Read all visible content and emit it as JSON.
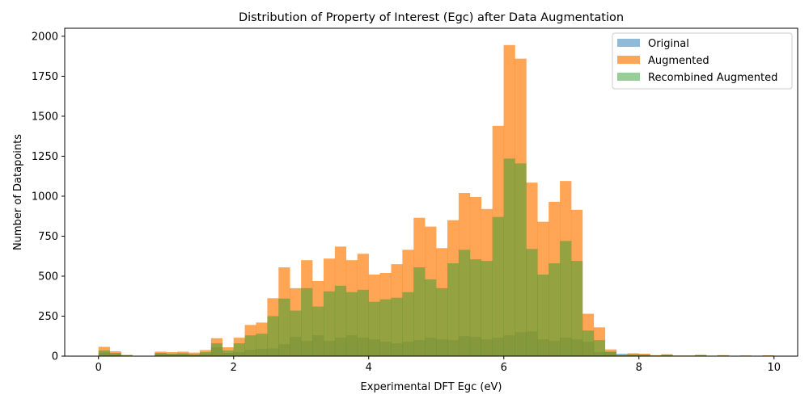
{
  "chart_data": {
    "type": "bar",
    "title": "Distribution of Property of Interest (Egc) after Data Augmentation",
    "xlabel": "Experimental DFT Egc (eV)",
    "ylabel": "Number of Datapoints",
    "xlim": [
      -0.5,
      10.35
    ],
    "ylim": [
      0,
      2050
    ],
    "xticks": [
      0,
      2,
      4,
      6,
      8,
      10
    ],
    "yticks": [
      0,
      250,
      500,
      750,
      1000,
      1250,
      1500,
      1750,
      2000
    ],
    "grid": false,
    "legend_position": "top-right",
    "bin_edges_start": 0,
    "bin_width": 0.1666,
    "series": [
      {
        "name": "Original",
        "color": "#1f77b4",
        "alpha": 0.5,
        "values": [
          22,
          12,
          3,
          0,
          2,
          15,
          12,
          12,
          8,
          14,
          55,
          20,
          25,
          40,
          45,
          48,
          75,
          120,
          95,
          130,
          95,
          115,
          130,
          115,
          105,
          90,
          80,
          90,
          100,
          115,
          105,
          100,
          125,
          120,
          105,
          115,
          130,
          150,
          155,
          105,
          95,
          115,
          105,
          90,
          25,
          30,
          15,
          5,
          3,
          3,
          2,
          2,
          2,
          2,
          2,
          2,
          2,
          2,
          2,
          2
        ]
      },
      {
        "name": "Augmented",
        "color": "#ff7f0e",
        "alpha": 0.7,
        "values": [
          58,
          30,
          8,
          0,
          2,
          28,
          25,
          28,
          22,
          38,
          112,
          55,
          115,
          195,
          210,
          362,
          555,
          425,
          600,
          470,
          610,
          685,
          600,
          640,
          510,
          520,
          575,
          665,
          865,
          810,
          675,
          850,
          1020,
          995,
          920,
          1440,
          1945,
          1860,
          1085,
          840,
          965,
          1095,
          915,
          265,
          180,
          42,
          8,
          18,
          15,
          6,
          12,
          4,
          4,
          8,
          3,
          6,
          2,
          4,
          2,
          5
        ]
      },
      {
        "name": "Recombined Augmented",
        "color": "#2ca02c",
        "alpha": 0.5,
        "values": [
          35,
          20,
          5,
          0,
          0,
          20,
          15,
          18,
          12,
          25,
          80,
          35,
          80,
          130,
          140,
          250,
          360,
          285,
          425,
          310,
          405,
          440,
          400,
          415,
          340,
          355,
          365,
          400,
          555,
          480,
          425,
          580,
          665,
          605,
          595,
          870,
          1235,
          1205,
          670,
          510,
          580,
          720,
          595,
          160,
          100,
          25,
          5,
          12,
          10,
          4,
          8,
          3,
          3,
          6,
          2,
          4,
          2,
          3,
          2,
          3
        ]
      }
    ]
  }
}
